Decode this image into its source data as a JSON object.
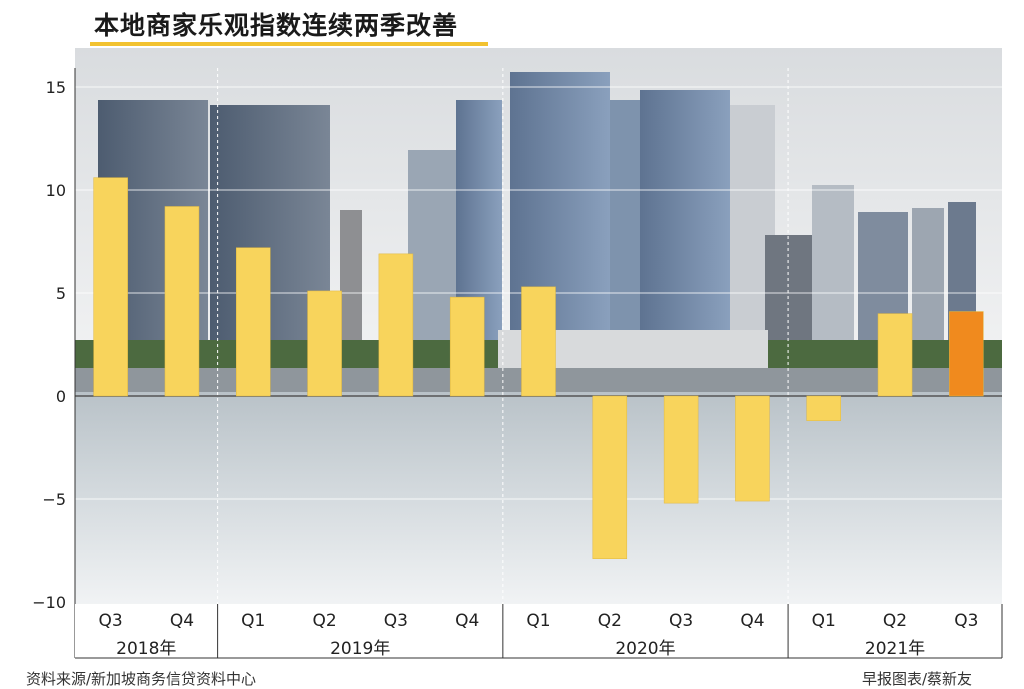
{
  "chart_data": {
    "type": "bar",
    "title": "本地商家乐观指数连续两季改善",
    "xlabel": "",
    "ylabel": "",
    "ylim": [
      -10,
      15
    ],
    "yticks": [
      15,
      10,
      5,
      0,
      -5,
      -10
    ],
    "categories": [
      "Q3",
      "Q4",
      "Q1",
      "Q2",
      "Q3",
      "Q4",
      "Q1",
      "Q2",
      "Q3",
      "Q4",
      "Q1",
      "Q2",
      "Q3"
    ],
    "years": [
      {
        "label": "2018年",
        "count": 2
      },
      {
        "label": "2019年",
        "count": 4
      },
      {
        "label": "2020年",
        "count": 4
      },
      {
        "label": "2021年",
        "count": 3
      }
    ],
    "values": [
      10.6,
      9.2,
      7.2,
      5.1,
      6.9,
      4.8,
      5.3,
      -7.9,
      -5.2,
      -5.1,
      -1.2,
      4.0,
      4.1
    ],
    "colors": {
      "normal": "#f8d45c",
      "highlight": "#f08a1e"
    },
    "highlight_index": 12,
    "grid": true,
    "background": "photo of city skyline over water"
  },
  "footer": {
    "source": "资料来源/新加坡商务信贷资料中心",
    "credit": "早报图表/蔡新友"
  }
}
